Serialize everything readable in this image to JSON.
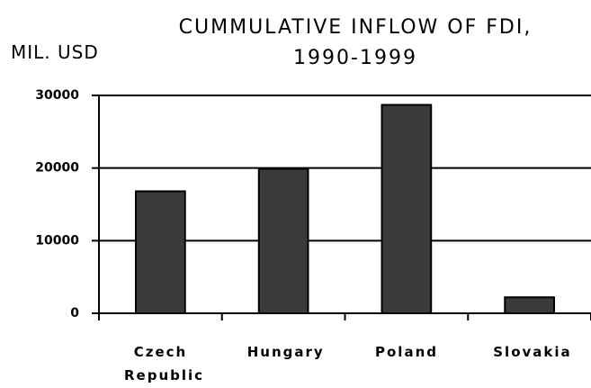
{
  "chart_data": {
    "type": "bar",
    "title": "CUMMULATIVE INFLOW OF FDI, 1990-1999",
    "ylabel": "MIL. USD",
    "categories": [
      "Czech Republic",
      "Hungary",
      "Poland",
      "Slovakia"
    ],
    "values": [
      16800,
      19900,
      28700,
      2200
    ],
    "color": "#3a3a3a",
    "ylim": [
      0,
      30000
    ],
    "yticks": [
      0,
      10000,
      20000,
      30000
    ],
    "grid": true
  }
}
